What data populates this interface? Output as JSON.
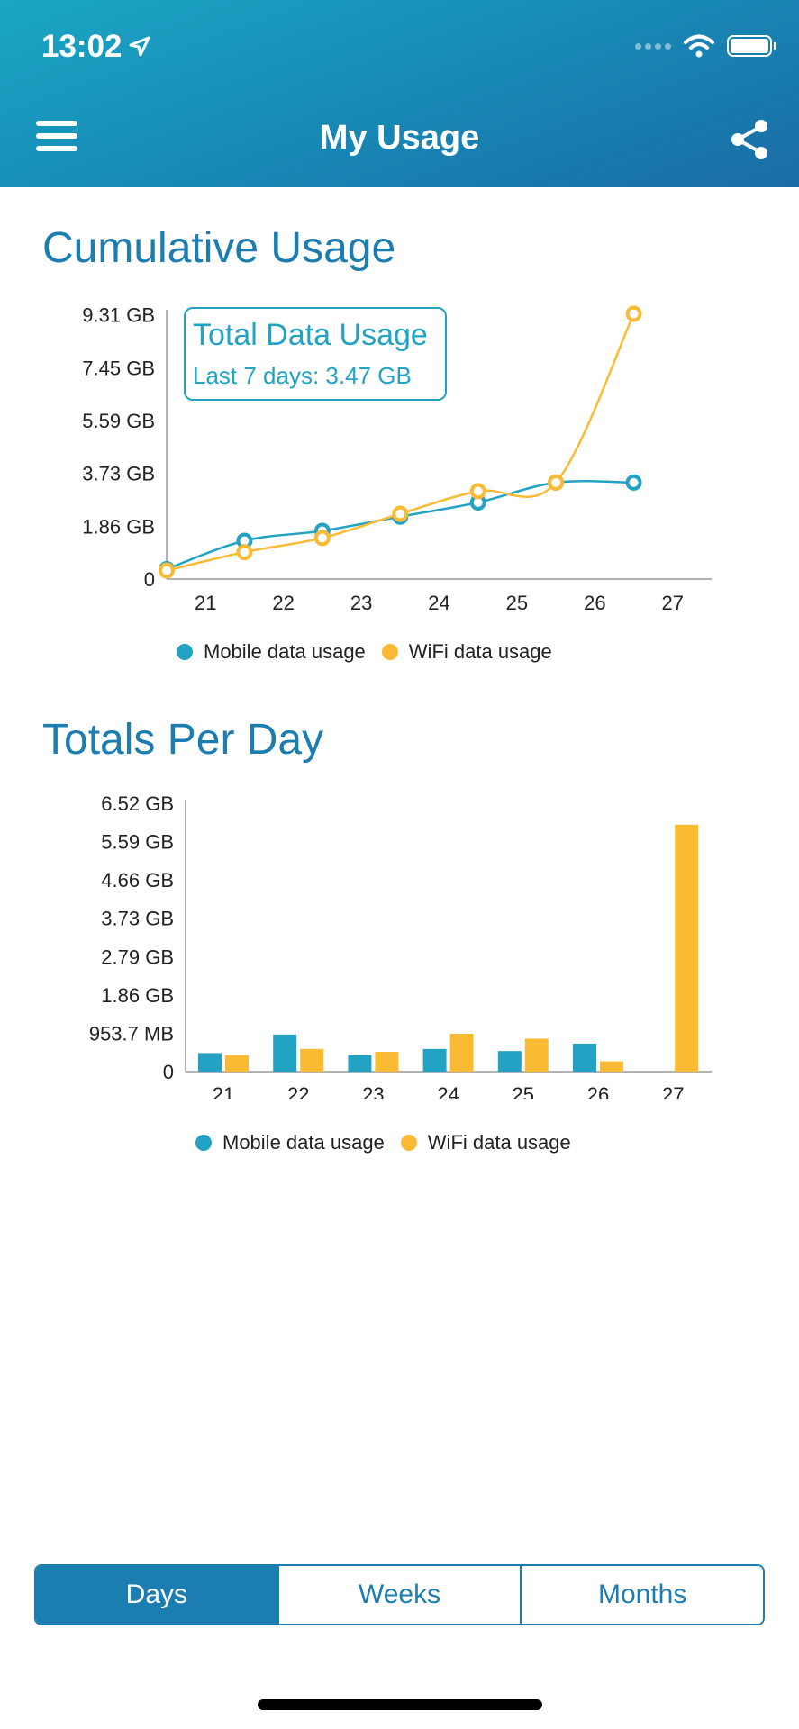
{
  "status_bar": {
    "time": "13:02"
  },
  "header": {
    "title": "My Usage"
  },
  "cumulative": {
    "section_title": "Cumulative Usage",
    "tooltip": {
      "title": "Total Data Usage",
      "subtitle": "Last 7 days: 3.47 GB"
    },
    "legend": {
      "mobile": "Mobile data usage",
      "wifi": "WiFi data usage"
    }
  },
  "totals": {
    "section_title": "Totals Per Day",
    "legend": {
      "mobile": "Mobile data usage",
      "wifi": "WiFi data usage"
    }
  },
  "tabs": [
    {
      "label": "Days",
      "active": true
    },
    {
      "label": "Weeks",
      "active": false
    },
    {
      "label": "Months",
      "active": false
    }
  ],
  "colors": {
    "mobile": "#22a3c4",
    "wifi": "#fbba34",
    "accent": "#1b7db0"
  },
  "chart_data": [
    {
      "type": "line",
      "title": "Cumulative Usage",
      "x_ticks": [
        "21",
        "22",
        "23",
        "24",
        "25",
        "26",
        "27"
      ],
      "y_tick_labels": [
        "0",
        "1.86 GB",
        "3.73 GB",
        "5.59 GB",
        "7.45 GB",
        "9.31 GB"
      ],
      "y_tick_values": [
        0,
        1.86,
        3.73,
        5.59,
        7.45,
        9.31
      ],
      "ylim": [
        0,
        10
      ],
      "series": [
        {
          "name": "Mobile data usage",
          "color": "#22a3c4",
          "x": [
            20.5,
            21.5,
            22.5,
            23.5,
            24.5,
            25.5,
            26.5
          ],
          "y": [
            0.35,
            1.35,
            1.7,
            2.2,
            2.7,
            3.4,
            3.4
          ]
        },
        {
          "name": "WiFi data usage",
          "color": "#fbba34",
          "x": [
            20.5,
            21.5,
            22.5,
            23.5,
            24.5,
            25.5,
            26.5
          ],
          "y": [
            0.3,
            0.95,
            1.45,
            2.3,
            3.1,
            3.4,
            9.35
          ]
        }
      ],
      "legend": "bottom"
    },
    {
      "type": "bar",
      "title": "Totals Per Day",
      "categories": [
        "21",
        "22",
        "23",
        "24",
        "25",
        "26",
        "27"
      ],
      "y_tick_labels": [
        "0",
        "953.7 MB",
        "1.86 GB",
        "2.79 GB",
        "3.73 GB",
        "4.66 GB",
        "5.59 GB",
        "6.52 GB"
      ],
      "y_tick_values": [
        0,
        0.93,
        1.86,
        2.79,
        3.73,
        4.66,
        5.59,
        6.52
      ],
      "ylim": [
        0,
        6.52
      ],
      "series": [
        {
          "name": "Mobile data usage",
          "color": "#22a3c4",
          "values": [
            0.45,
            0.9,
            0.4,
            0.55,
            0.5,
            0.68,
            0
          ]
        },
        {
          "name": "WiFi data usage",
          "color": "#fbba34",
          "values": [
            0.4,
            0.55,
            0.48,
            0.92,
            0.8,
            0.25,
            6.0
          ]
        }
      ],
      "legend": "bottom"
    }
  ]
}
